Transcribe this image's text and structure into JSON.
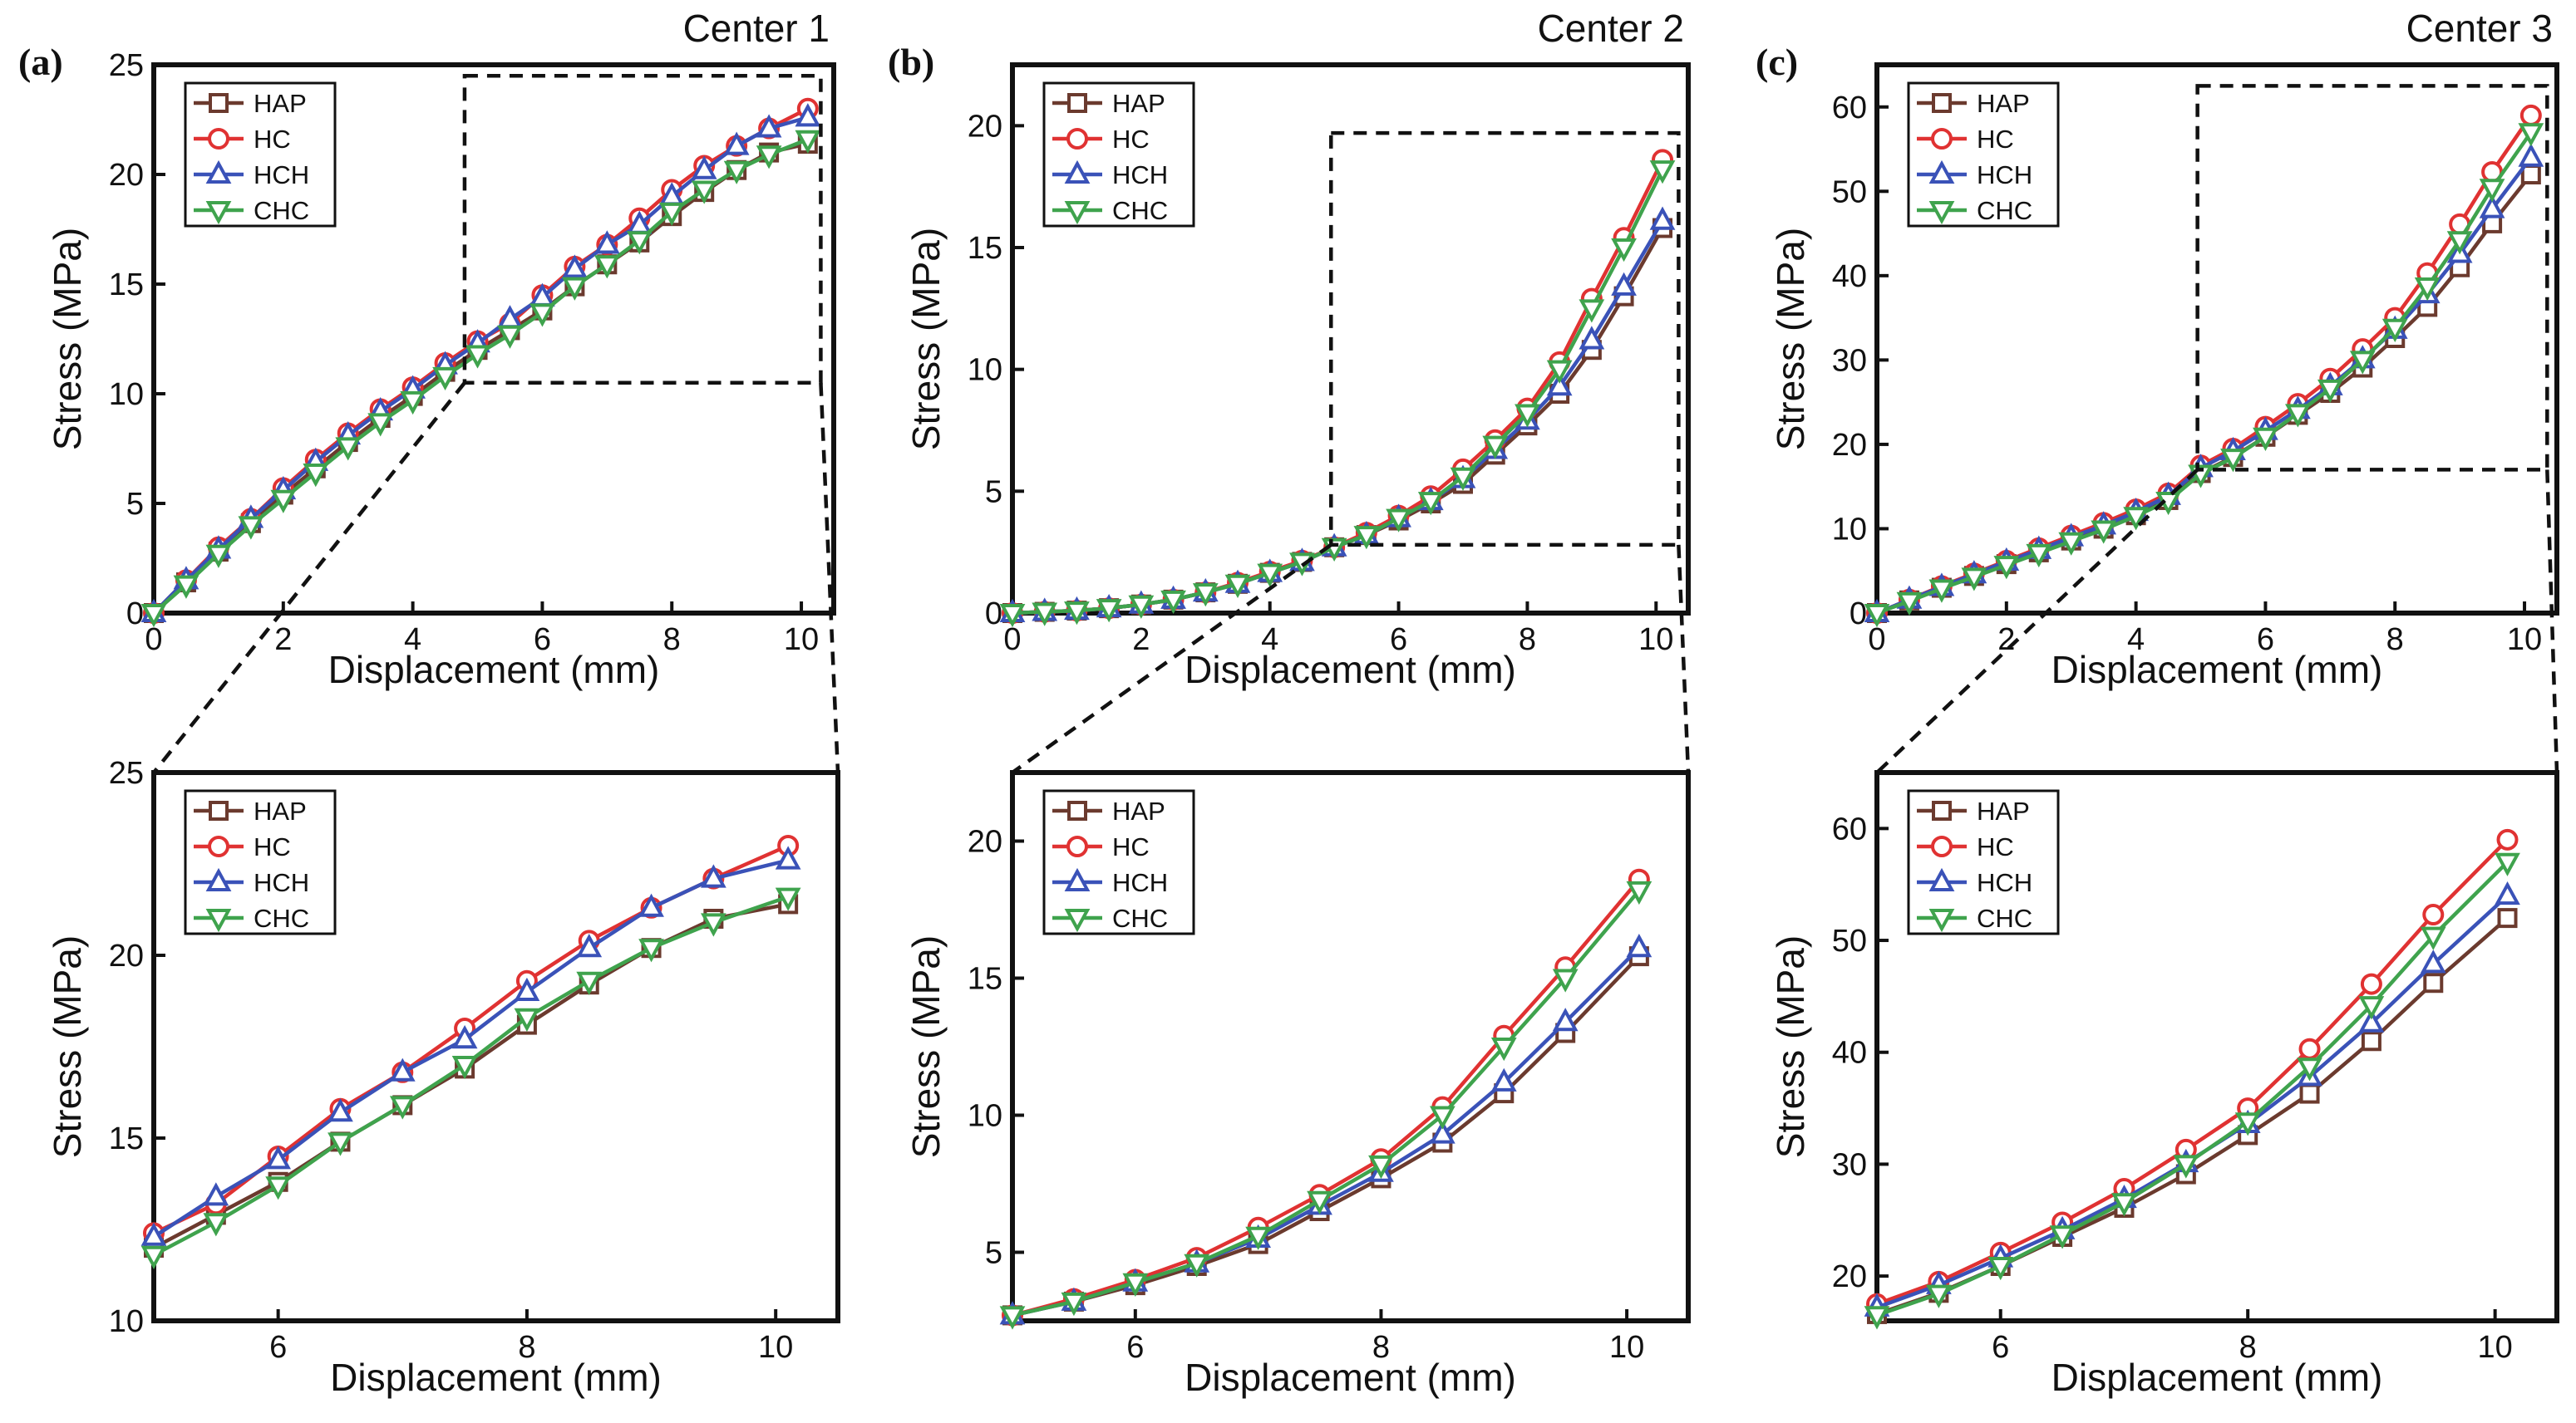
{
  "figure": {
    "colors": {
      "HAP": "#6b3a2e",
      "HC": "#e03232",
      "HCH": "#3a52b8",
      "CHC": "#3fa34d",
      "axis": "#111111",
      "dash": "#111111"
    },
    "markers": {
      "HAP": "square",
      "HC": "circle",
      "HCH": "triangle-up",
      "CHC": "triangle-down"
    }
  },
  "chart_data": [
    {
      "type": "line",
      "panel": "(a)",
      "title": "Center 1",
      "xlabel": "Displacement (mm)",
      "ylabel": "Stress (MPa)",
      "xlim": [
        0,
        10.5
      ],
      "ylim": [
        0,
        25
      ],
      "xticks": [
        0,
        2,
        4,
        6,
        8,
        10
      ],
      "yticks": [
        0,
        5,
        10,
        15,
        20,
        25
      ],
      "legend": [
        "HAP",
        "HC",
        "HCH",
        "CHC"
      ],
      "zoom_box": {
        "x": [
          4.8,
          10.3
        ],
        "y": [
          10.5,
          24.5
        ]
      },
      "x": [
        0,
        0.5,
        1.0,
        1.5,
        2.0,
        2.5,
        3.0,
        3.5,
        4.0,
        4.5,
        5.0,
        5.5,
        6.0,
        6.5,
        7.0,
        7.5,
        8.0,
        8.5,
        9.0,
        9.5,
        10.1
      ],
      "series": [
        {
          "name": "HAP",
          "values": [
            0,
            1.4,
            2.8,
            4.1,
            5.4,
            6.6,
            7.8,
            8.9,
            9.9,
            11.0,
            12.0,
            12.9,
            13.8,
            14.9,
            15.9,
            16.9,
            18.1,
            19.2,
            20.2,
            21.0,
            21.4
          ]
        },
        {
          "name": "HC",
          "values": [
            0,
            1.5,
            3.0,
            4.3,
            5.7,
            7.0,
            8.2,
            9.3,
            10.3,
            11.4,
            12.4,
            13.2,
            14.5,
            15.8,
            16.8,
            18.0,
            19.3,
            20.4,
            21.3,
            22.1,
            23.0
          ]
        },
        {
          "name": "HCH",
          "values": [
            0,
            1.5,
            2.9,
            4.3,
            5.6,
            6.9,
            8.1,
            9.2,
            10.2,
            11.3,
            12.3,
            13.4,
            14.4,
            15.7,
            16.8,
            17.7,
            19.0,
            20.2,
            21.3,
            22.1,
            22.6
          ]
        },
        {
          "name": "CHC",
          "values": [
            0,
            1.3,
            2.7,
            4.0,
            5.2,
            6.4,
            7.6,
            8.7,
            9.7,
            10.8,
            11.8,
            12.7,
            13.7,
            14.9,
            15.9,
            17.0,
            18.3,
            19.3,
            20.2,
            20.9,
            21.6
          ]
        }
      ]
    },
    {
      "type": "line",
      "panel": "(b)",
      "title": "Center 2",
      "xlabel": "Displacement (mm)",
      "ylabel": "Stress (MPa)",
      "xlim": [
        0,
        10.5
      ],
      "ylim": [
        0,
        22.5
      ],
      "xticks": [
        0,
        2,
        4,
        6,
        8,
        10
      ],
      "yticks": [
        0,
        5,
        10,
        15,
        20
      ],
      "legend": [
        "HAP",
        "HC",
        "HCH",
        "CHC"
      ],
      "zoom_box": {
        "x": [
          4.95,
          10.35
        ],
        "y": [
          2.8,
          19.7
        ]
      },
      "x": [
        0,
        0.5,
        1.0,
        1.5,
        2.0,
        2.5,
        3.0,
        3.5,
        4.0,
        4.5,
        5.0,
        5.5,
        6.0,
        6.5,
        7.0,
        7.5,
        8.0,
        8.5,
        9.0,
        9.5,
        10.1
      ],
      "series": [
        {
          "name": "HAP",
          "values": [
            0,
            0.05,
            0.1,
            0.2,
            0.35,
            0.55,
            0.85,
            1.2,
            1.65,
            2.1,
            2.7,
            3.2,
            3.8,
            4.5,
            5.3,
            6.5,
            7.7,
            9.0,
            10.8,
            13.0,
            15.8
          ]
        },
        {
          "name": "HC",
          "values": [
            0,
            0.05,
            0.1,
            0.2,
            0.35,
            0.55,
            0.85,
            1.25,
            1.7,
            2.15,
            2.7,
            3.3,
            4.0,
            4.8,
            5.9,
            7.1,
            8.4,
            10.3,
            12.9,
            15.4,
            18.6
          ]
        },
        {
          "name": "HCH",
          "values": [
            0,
            0.05,
            0.1,
            0.2,
            0.35,
            0.55,
            0.85,
            1.2,
            1.65,
            2.1,
            2.7,
            3.2,
            3.9,
            4.6,
            5.5,
            6.7,
            7.9,
            9.3,
            11.2,
            13.4,
            16.1
          ]
        },
        {
          "name": "CHC",
          "values": [
            0,
            0.05,
            0.1,
            0.2,
            0.35,
            0.55,
            0.85,
            1.2,
            1.65,
            2.1,
            2.7,
            3.2,
            3.9,
            4.6,
            5.6,
            6.9,
            8.2,
            10.0,
            12.5,
            15.0,
            18.2
          ]
        }
      ]
    },
    {
      "type": "line",
      "panel": "(c)",
      "title": "Center 3",
      "xlabel": "Displacement (mm)",
      "ylabel": "Stress (MPa)",
      "xlim": [
        0,
        10.5
      ],
      "ylim": [
        0,
        65
      ],
      "xticks": [
        0,
        2,
        4,
        6,
        8,
        10
      ],
      "yticks": [
        0,
        10,
        20,
        30,
        40,
        50,
        60
      ],
      "legend": [
        "HAP",
        "HC",
        "HCH",
        "CHC"
      ],
      "zoom_box": {
        "x": [
          4.95,
          10.35
        ],
        "y": [
          17,
          62.5
        ]
      },
      "x": [
        0,
        0.5,
        1.0,
        1.5,
        2.0,
        2.5,
        3.0,
        3.5,
        4.0,
        4.5,
        5.0,
        5.5,
        6.0,
        6.5,
        7.0,
        7.5,
        8.0,
        8.5,
        9.0,
        9.5,
        10.1
      ],
      "series": [
        {
          "name": "HAP",
          "values": [
            0,
            1.5,
            3.0,
            4.4,
            5.8,
            7.2,
            8.6,
            10.0,
            11.6,
            13.4,
            16.6,
            18.5,
            20.9,
            23.5,
            26.1,
            29.1,
            32.6,
            36.3,
            41.0,
            46.2,
            52.0
          ]
        },
        {
          "name": "HC",
          "values": [
            0,
            1.6,
            3.2,
            4.7,
            6.2,
            7.7,
            9.2,
            10.7,
            12.3,
            14.2,
            17.5,
            19.5,
            22.1,
            24.8,
            27.8,
            31.3,
            35.0,
            40.3,
            46.1,
            52.3,
            59.0
          ]
        },
        {
          "name": "HCH",
          "values": [
            0,
            1.6,
            3.1,
            4.6,
            6.1,
            7.5,
            9.0,
            10.4,
            12.0,
            13.9,
            17.2,
            19.2,
            21.6,
            24.1,
            26.9,
            30.1,
            33.6,
            37.8,
            42.6,
            47.9,
            54.0
          ]
        },
        {
          "name": "CHC",
          "values": [
            0,
            1.4,
            2.9,
            4.3,
            5.7,
            7.1,
            8.5,
            9.9,
            11.5,
            13.3,
            16.5,
            18.4,
            20.9,
            23.7,
            26.6,
            30.0,
            33.8,
            38.7,
            44.2,
            50.4,
            57.0
          ]
        }
      ]
    },
    {
      "type": "line",
      "panel": "(a) zoom",
      "xlabel": "Displacement (mm)",
      "ylabel": "Stress (MPa)",
      "xlim": [
        5,
        10.5
      ],
      "ylim": [
        10,
        25
      ],
      "xticks": [
        6,
        8,
        10
      ],
      "yticks": [
        10,
        15,
        20,
        25
      ],
      "legend": [
        "HAP",
        "HC",
        "HCH",
        "CHC"
      ],
      "x": [
        5.0,
        5.5,
        6.0,
        6.5,
        7.0,
        7.5,
        8.0,
        8.5,
        9.0,
        9.5,
        10.1
      ],
      "series": [
        {
          "name": "HAP",
          "values": [
            12.0,
            12.9,
            13.8,
            14.9,
            15.9,
            16.9,
            18.1,
            19.2,
            20.2,
            21.0,
            21.4
          ]
        },
        {
          "name": "HC",
          "values": [
            12.4,
            13.2,
            14.5,
            15.8,
            16.8,
            18.0,
            19.3,
            20.4,
            21.3,
            22.1,
            23.0
          ]
        },
        {
          "name": "HCH",
          "values": [
            12.3,
            13.4,
            14.4,
            15.7,
            16.8,
            17.7,
            19.0,
            20.2,
            21.3,
            22.1,
            22.6
          ]
        },
        {
          "name": "CHC",
          "values": [
            11.8,
            12.7,
            13.7,
            14.9,
            15.9,
            17.0,
            18.3,
            19.3,
            20.2,
            20.9,
            21.6
          ]
        }
      ]
    },
    {
      "type": "line",
      "panel": "(b) zoom",
      "xlabel": "Displacement (mm)",
      "ylabel": "Stress (MPa)",
      "xlim": [
        5,
        10.5
      ],
      "ylim": [
        2.5,
        22.5
      ],
      "xticks": [
        6,
        8,
        10
      ],
      "yticks": [
        5,
        10,
        15,
        20
      ],
      "legend": [
        "HAP",
        "HC",
        "HCH",
        "CHC"
      ],
      "x": [
        5.0,
        5.5,
        6.0,
        6.5,
        7.0,
        7.5,
        8.0,
        8.5,
        9.0,
        9.5,
        10.1
      ],
      "series": [
        {
          "name": "HAP",
          "values": [
            2.7,
            3.2,
            3.8,
            4.5,
            5.3,
            6.5,
            7.7,
            9.0,
            10.8,
            13.0,
            15.8
          ]
        },
        {
          "name": "HC",
          "values": [
            2.7,
            3.3,
            4.0,
            4.8,
            5.9,
            7.1,
            8.4,
            10.3,
            12.9,
            15.4,
            18.6
          ]
        },
        {
          "name": "HCH",
          "values": [
            2.7,
            3.2,
            3.9,
            4.6,
            5.5,
            6.7,
            7.9,
            9.3,
            11.2,
            13.4,
            16.1
          ]
        },
        {
          "name": "CHC",
          "values": [
            2.7,
            3.2,
            3.9,
            4.6,
            5.6,
            6.9,
            8.2,
            10.0,
            12.5,
            15.0,
            18.2
          ]
        }
      ]
    },
    {
      "type": "line",
      "panel": "(c) zoom",
      "xlabel": "Displacement (mm)",
      "ylabel": "Stress (MPa)",
      "xlim": [
        5,
        10.5
      ],
      "ylim": [
        16,
        65
      ],
      "xticks": [
        6,
        8,
        10
      ],
      "yticks": [
        20,
        30,
        40,
        50,
        60
      ],
      "legend": [
        "HAP",
        "HC",
        "HCH",
        "CHC"
      ],
      "x": [
        5.0,
        5.5,
        6.0,
        6.5,
        7.0,
        7.5,
        8.0,
        8.5,
        9.0,
        9.5,
        10.1
      ],
      "series": [
        {
          "name": "HAP",
          "values": [
            16.6,
            18.5,
            20.9,
            23.5,
            26.1,
            29.1,
            32.6,
            36.3,
            41.0,
            46.2,
            52.0
          ]
        },
        {
          "name": "HC",
          "values": [
            17.5,
            19.5,
            22.1,
            24.8,
            27.8,
            31.3,
            35.0,
            40.3,
            46.1,
            52.3,
            59.0
          ]
        },
        {
          "name": "HCH",
          "values": [
            17.2,
            19.2,
            21.6,
            24.1,
            26.9,
            30.1,
            33.6,
            37.8,
            42.6,
            47.9,
            54.0
          ]
        },
        {
          "name": "CHC",
          "values": [
            16.5,
            18.4,
            20.9,
            23.7,
            26.6,
            30.0,
            33.8,
            38.7,
            44.2,
            50.4,
            57.0
          ]
        }
      ]
    }
  ]
}
